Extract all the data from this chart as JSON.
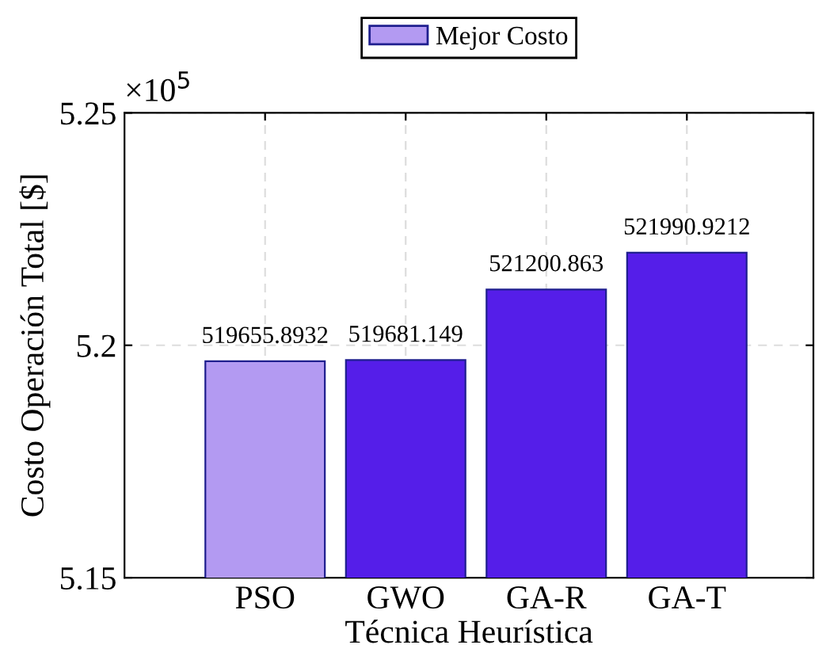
{
  "chart_data": {
    "type": "bar",
    "xlabel": "Técnica Heurística",
    "ylabel": "Costo Operación Total [$]",
    "categories": [
      "PSO",
      "GWO",
      "GA-R",
      "GA-T"
    ],
    "series": [
      {
        "name": "Mejor Costo",
        "color": "#b39af2",
        "colors": [
          "#b39af2",
          "#551ee9",
          "#551ee9",
          "#551ee9"
        ],
        "values": [
          5.196558932,
          5.19681149,
          5.21200863,
          5.219909212
        ]
      }
    ],
    "value_labels": [
      "519655.8932",
      "519681.149",
      "521200.863",
      "521990.9212"
    ],
    "ylim": [
      5.15,
      5.25
    ],
    "yticks": [
      5.15,
      5.2,
      5.25
    ],
    "annotations": [
      "×10$^{5}$"
    ],
    "grid": true,
    "legend": "top"
  }
}
